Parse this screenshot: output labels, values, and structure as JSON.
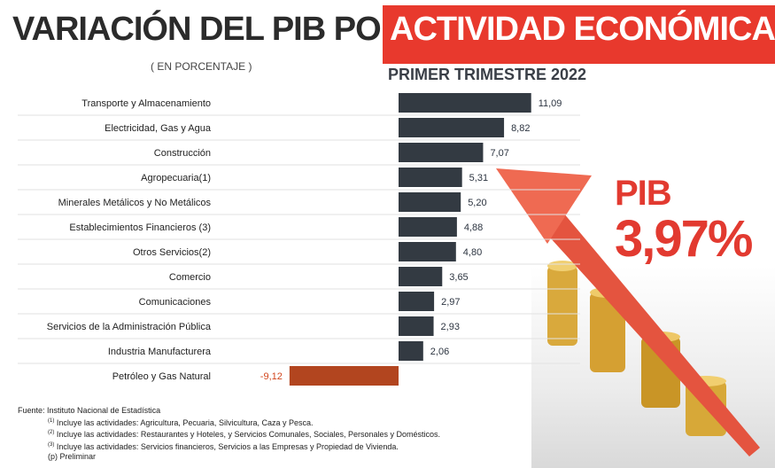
{
  "header": {
    "title_part1": "VARIACIÓN DEL PIB POR",
    "title_part2": "ACTIVIDAD ECONÓMICA",
    "subtitle": "( EN PORCENTAJE )",
    "period": "PRIMER TRIMESTRE 2022"
  },
  "highlight": {
    "label": "PIB",
    "value": "3,97%"
  },
  "colors": {
    "positive_bar": "#333a42",
    "negative_bar": "#b2451f",
    "negative_label": "#d2451c",
    "accent_red": "#e8392d",
    "gridline": "#e2e2e2",
    "arrow": "#e95a44"
  },
  "chart_data": {
    "type": "bar",
    "orientation": "horizontal",
    "categories": [
      "Transporte y Almacenamiento",
      "Electricidad, Gas y Agua",
      "Construcción",
      "Agropecuaria(1)",
      "Minerales Metálicos y No Metálicos",
      "Establecimientos Financieros (3)",
      "Otros Servicios(2)",
      "Comercio",
      "Comunicaciones",
      "Servicios de la Administración Pública",
      "Industria Manufacturera",
      "Petróleo y Gas Natural"
    ],
    "values": [
      11.09,
      8.82,
      7.07,
      5.31,
      5.2,
      4.88,
      4.8,
      3.65,
      2.97,
      2.93,
      2.06,
      -9.12
    ],
    "value_labels": [
      "11,09",
      "8,82",
      "7,07",
      "5,31",
      "5,20",
      "4,88",
      "4,80",
      "3,65",
      "2,97",
      "2,93",
      "2,06",
      "-9,12"
    ],
    "xlim": [
      -9.12,
      11.09
    ],
    "grid": "horizontal row separators",
    "legend": "none"
  },
  "footnotes": {
    "source": "Fuente: Instituto Nacional de Estadística",
    "note1_mark": "(1)",
    "note1": " Incluye las actividades: Agricultura, Pecuaria, Silvicultura, Caza y Pesca.",
    "note2_mark": "(2)",
    "note2": " Incluye las actividades: Restaurantes y Hoteles, y Servicios Comunales, Sociales, Personales y Domésticos.",
    "note3_mark": "(3)",
    "note3": " Incluye las actividades: Servicios financieros, Servicios a las Empresas y Propiedad de Vivienda.",
    "preliminary": "(p) Preliminar"
  }
}
